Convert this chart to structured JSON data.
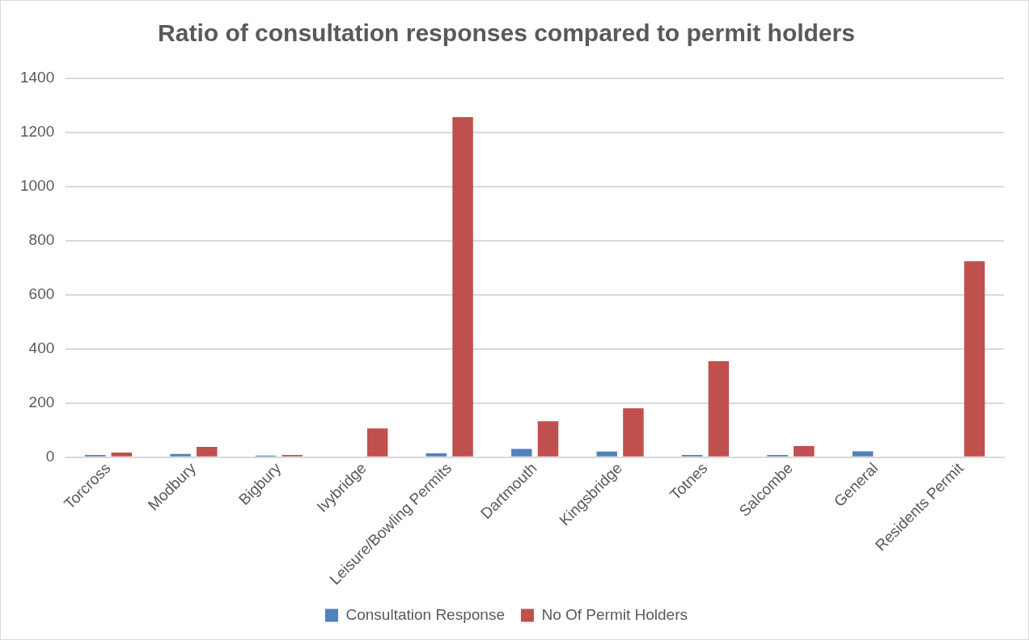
{
  "chart_data": {
    "type": "bar",
    "title": "Ratio of consultation responses compared to permit holders",
    "categories": [
      "Torcross",
      "Modbury",
      "Bigbury",
      "Ivybridge",
      "Leisure/Bowling Permits",
      "Dartmouth",
      "Kingsbridge",
      "Totnes",
      "Salcombe",
      "General",
      "Residents Permit"
    ],
    "series": [
      {
        "name": "Consultation Response",
        "color": "#4f81bd",
        "values": [
          8,
          12,
          6,
          0,
          14,
          31,
          21,
          8,
          8,
          22,
          0
        ]
      },
      {
        "name": "No Of Permit Holders",
        "color": "#c0504d",
        "values": [
          17,
          38,
          8,
          106,
          1257,
          133,
          181,
          355,
          41,
          0,
          724
        ]
      }
    ],
    "ylim": [
      0,
      1400
    ],
    "yticks": [
      0,
      200,
      400,
      600,
      800,
      1000,
      1200,
      1400
    ],
    "grid": "y",
    "legend": "bottom"
  }
}
